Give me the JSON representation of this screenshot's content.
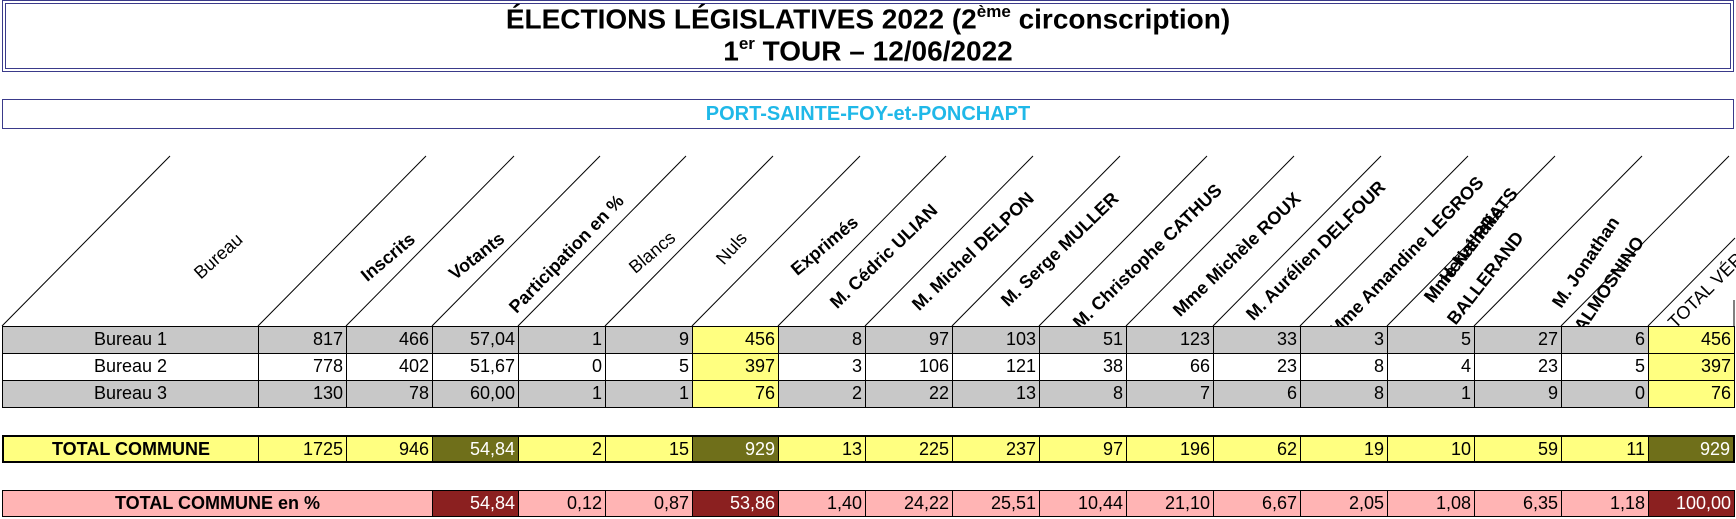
{
  "title": {
    "line1_pre": "ÉLECTIONS LÉGISLATIVES 2022 (2",
    "line1_sup": "ème",
    "line1_post": " circonscription)",
    "line2_pre": "1",
    "line2_sup": "er",
    "line2_post": " TOUR – 12/06/2022"
  },
  "commune": "PORT-SAINTE-FOY-et-PONCHAPT",
  "headers": [
    {
      "text": "Bureau",
      "bold": false
    },
    {
      "text": "Inscrits",
      "bold": true
    },
    {
      "text": "Votants",
      "bold": true
    },
    {
      "text": "Participation en %",
      "bold": true
    },
    {
      "text": "Blancs",
      "bold": false
    },
    {
      "text": "Nuls",
      "bold": false
    },
    {
      "text": "Exprimés",
      "bold": true
    },
    {
      "text": "M. Cédric ULIAN",
      "bold": true
    },
    {
      "text": "M. Michel DELPON",
      "bold": true
    },
    {
      "text": "M. Serge MULLER",
      "bold": true
    },
    {
      "text": "M. Christophe CATHUS",
      "bold": true
    },
    {
      "text": "Mme Michèle ROUX",
      "bold": true
    },
    {
      "text": "M. Aurélien DELFOUR",
      "bold": true
    },
    {
      "text": "Mme Amandine LEGROS",
      "bold": true
    },
    {
      "text": "M. Hervé PRATS",
      "bold": true
    },
    {
      "text": "Mme Nathalie BALLERAND",
      "bold": true
    },
    {
      "text": "M. Jonathan ALMOSNINO",
      "bold": true
    },
    {
      "text": "TOTAL VÉRIF",
      "bold": false
    }
  ],
  "rows": [
    {
      "label": "Bureau 1",
      "values": [
        "817",
        "466",
        "57,04",
        "1",
        "9",
        "456",
        "8",
        "97",
        "103",
        "51",
        "123",
        "33",
        "3",
        "5",
        "27",
        "6",
        "456"
      ]
    },
    {
      "label": "Bureau 2",
      "values": [
        "778",
        "402",
        "51,67",
        "0",
        "5",
        "397",
        "3",
        "106",
        "121",
        "38",
        "66",
        "23",
        "8",
        "4",
        "23",
        "5",
        "397"
      ]
    },
    {
      "label": "Bureau 3",
      "values": [
        "130",
        "78",
        "60,00",
        "1",
        "1",
        "76",
        "2",
        "22",
        "13",
        "8",
        "7",
        "6",
        "8",
        "1",
        "9",
        "0",
        "76"
      ]
    }
  ],
  "total": {
    "label": "TOTAL COMMUNE",
    "values": [
      "1725",
      "946",
      "54,84",
      "2",
      "15",
      "929",
      "13",
      "225",
      "237",
      "97",
      "196",
      "62",
      "19",
      "10",
      "59",
      "11",
      "929"
    ]
  },
  "percent": {
    "label": "TOTAL COMMUNE en %",
    "values": [
      "",
      "",
      "54,84",
      "0,12",
      "0,87",
      "53,86",
      "1,40",
      "24,22",
      "25,51",
      "10,44",
      "21,10",
      "6,67",
      "2,05",
      "1,08",
      "6,35",
      "1,18",
      "100,00"
    ]
  },
  "colors": {
    "row_gray": "#c8c8c8",
    "yellow": "#ffff80",
    "olive": "#6f6f1a",
    "pink": "#ffb4b4",
    "dark_red": "#8b2020",
    "commune_cyan": "#1fb8e8"
  }
}
